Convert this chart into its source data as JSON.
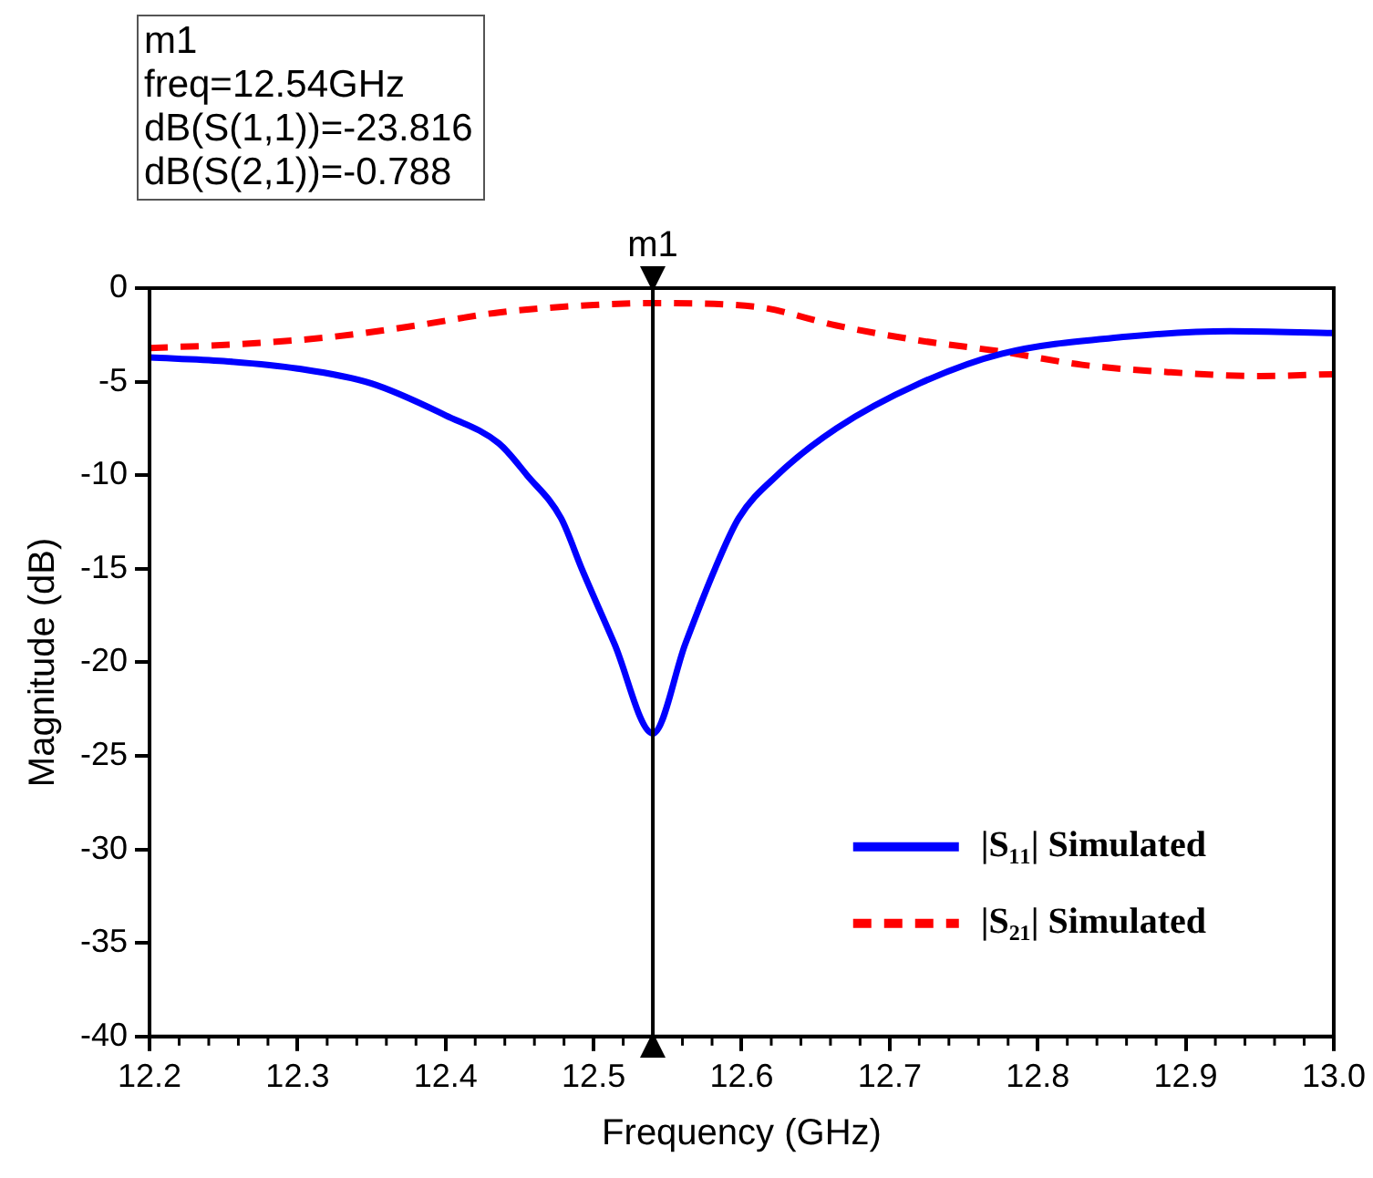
{
  "chart_data": {
    "type": "line",
    "xlabel": "Frequency (GHz)",
    "ylabel": "Magnitude (dB)",
    "annotations": [
      "m1",
      "freq=12.54GHz",
      "dB(S(1,1))=-23.816",
      "dB(S(2,1))=-0.788"
    ],
    "xlim": [
      12.2,
      13.0
    ],
    "ylim": [
      -40,
      0
    ],
    "xticks": [
      12.2,
      12.3,
      12.4,
      12.5,
      12.6,
      12.7,
      12.8,
      12.9,
      {
        "value": 13,
        "label": "13.0"
      }
    ],
    "yticks": [
      0,
      -5,
      -10,
      -15,
      -20,
      -25,
      -30,
      -35,
      -40
    ],
    "grid": false,
    "legend": "bottom right",
    "marker": "none",
    "ref_lines": [
      {
        "axis": "x",
        "value": 12.54,
        "label": "m1",
        "color": "#000000"
      }
    ],
    "series": [
      {
        "name": "|S₁₁| Simulated",
        "color": "#0000ff",
        "line_style": "solid",
        "x": [
          12.2,
          12.25,
          12.3,
          12.35,
          12.4,
          12.436,
          12.455,
          12.478,
          12.492,
          12.514,
          12.54,
          12.562,
          12.582,
          12.598,
          12.624,
          12.664,
          12.72,
          12.776,
          12.86,
          12.93,
          13.0
        ],
        "values": [
          -3.7,
          -3.9,
          -4.3,
          -5.1,
          -6.8,
          -8.3,
          -10,
          -12.3,
          -15,
          -19,
          -23.8,
          -19,
          -15,
          -12.3,
          -10,
          -7.5,
          -5.1,
          -3.5,
          -2.6,
          -2.3,
          -2.4
        ]
      },
      {
        "name": "|S₂₁| Simulated",
        "color": "#ff0000",
        "line_style": "dashed",
        "x": [
          12.2,
          12.26,
          12.324,
          12.38,
          12.436,
          12.5,
          12.54,
          12.61,
          12.664,
          12.72,
          12.776,
          12.83,
          12.89,
          12.95,
          13.0
        ],
        "values": [
          -3.2,
          -3.0,
          -2.6,
          -2.0,
          -1.3,
          -0.9,
          -0.8,
          -1.0,
          -2.0,
          -2.8,
          -3.4,
          -4.1,
          -4.5,
          -4.7,
          -4.6
        ]
      }
    ]
  }
}
